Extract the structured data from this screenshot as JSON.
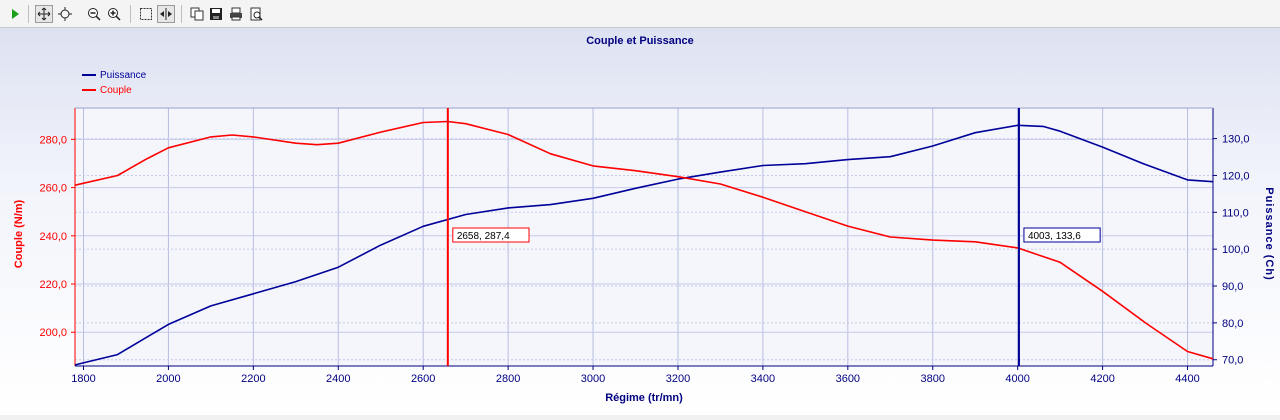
{
  "toolbar": {
    "buttons": [
      {
        "name": "run-button",
        "icon": "play-icon"
      },
      {
        "name": "pan-button",
        "icon": "move-icon"
      },
      {
        "name": "zoom-rect-button",
        "icon": "zoom-cursor-icon"
      },
      {
        "name": "zoom-out-button",
        "icon": "zoom-out-icon"
      },
      {
        "name": "zoom-in-button",
        "icon": "zoom-in-icon"
      },
      {
        "name": "select-button",
        "icon": "select-rect-icon"
      },
      {
        "name": "cursor-button",
        "icon": "cursor-lines-icon"
      },
      {
        "name": "copy-button",
        "icon": "copy-icon"
      },
      {
        "name": "save-button",
        "icon": "save-icon"
      },
      {
        "name": "print-button",
        "icon": "print-icon"
      },
      {
        "name": "print-preview-button",
        "icon": "print-preview-icon"
      }
    ]
  },
  "chart_data": {
    "type": "line",
    "title": "Couple et Puissance",
    "xlabel": "Régime (tr/mn)",
    "ylabel_left": "Couple (N/m)",
    "ylabel_right": "Puissance (Ch)",
    "xlim": [
      1780,
      4460
    ],
    "ylim_left": [
      186,
      293
    ],
    "ylim_right": [
      68.3,
      138.3
    ],
    "x_ticks": [
      1800,
      2000,
      2200,
      2400,
      2600,
      2800,
      3000,
      3200,
      3400,
      3600,
      3800,
      4000,
      4200,
      4400
    ],
    "y_left_ticks": [
      200,
      220,
      240,
      260,
      280
    ],
    "y_left_tick_labels": [
      "200,0",
      "220,0",
      "240,0",
      "260,0",
      "280,0"
    ],
    "y_right_ticks": [
      70,
      80,
      90,
      100,
      110,
      120,
      130
    ],
    "y_right_tick_labels": [
      "70,0",
      "80,0",
      "90,0",
      "100,0",
      "110,0",
      "120,0",
      "130,0"
    ],
    "grid": true,
    "legend_position": "top-left",
    "series": [
      {
        "name": "Puissance",
        "axis": "right",
        "color": "#000099",
        "x": [
          1780,
          1880,
          1950,
          2000,
          2100,
          2200,
          2300,
          2400,
          2500,
          2600,
          2700,
          2800,
          2900,
          3000,
          3100,
          3200,
          3300,
          3400,
          3500,
          3600,
          3700,
          3800,
          3900,
          4000,
          4060,
          4100,
          4200,
          4300,
          4400,
          4460
        ],
        "values": [
          68.6,
          71.4,
          76.2,
          79.6,
          84.6,
          87.9,
          91.2,
          95.1,
          101.1,
          106.2,
          109.4,
          111.2,
          112.1,
          113.8,
          116.5,
          119.0,
          120.9,
          122.7,
          123.2,
          124.3,
          125.1,
          128.0,
          131.6,
          133.6,
          133.3,
          132.0,
          127.7,
          123.0,
          118.8,
          118.3
        ]
      },
      {
        "name": "Couple",
        "axis": "left",
        "color": "#ff0000",
        "x": [
          1780,
          1880,
          1950,
          2000,
          2100,
          2150,
          2200,
          2300,
          2350,
          2400,
          2500,
          2600,
          2658,
          2700,
          2800,
          2900,
          3000,
          3100,
          3200,
          3300,
          3400,
          3500,
          3600,
          3700,
          3800,
          3900,
          4000,
          4050,
          4100,
          4200,
          4300,
          4400,
          4460
        ],
        "values": [
          261.0,
          265.0,
          272.0,
          276.5,
          281.0,
          281.8,
          281.0,
          278.4,
          277.8,
          278.4,
          283.0,
          287.0,
          287.4,
          286.5,
          282.0,
          274.0,
          269.0,
          267.0,
          264.5,
          261.5,
          256.0,
          250.0,
          244.0,
          239.5,
          238.2,
          237.5,
          235.0,
          232.0,
          229.0,
          217.0,
          204.0,
          192.0,
          189.0
        ]
      }
    ],
    "cursors": [
      {
        "x": 2658,
        "label": "2658, 287,4",
        "color": "#ff0000"
      },
      {
        "x": 4003,
        "label": "4003, 133,6",
        "color": "#000099"
      }
    ]
  }
}
